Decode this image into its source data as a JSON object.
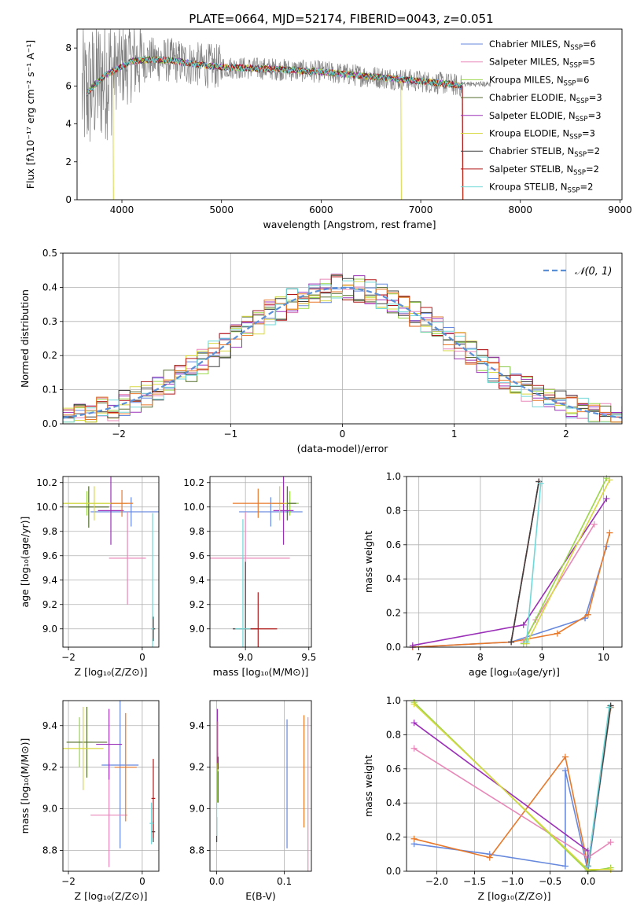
{
  "figure": {
    "title": "PLATE=0664, MJD=52174, FIBERID=0043, z=0.051"
  },
  "colors": {
    "Chabrier MILES": "#6688dd",
    "Salpeter MILES": "#e888b8",
    "Kroupa MILES": "#9ad64a",
    "Chabrier ELODIE": "#556b2f",
    "Salpeter ELODIE": "#9b30b8",
    "Kroupa ELODIE": "#d8d840",
    "Chabrier STELIB": "#404040",
    "Salpeter STELIB": "#b01818",
    "Kroupa STELIB": "#70d8d8",
    "orange": "#e8782a",
    "data": "#808080",
    "gauss": "#5b8fd6"
  },
  "chart_data": [
    {
      "id": "spectrum",
      "type": "line",
      "xlabel": "wavelength [Angstrom, rest frame]",
      "ylabel": "Flux [fλ10⁻¹⁷ erg cm⁻² s⁻¹ A⁻¹]",
      "xlim": [
        3550,
        9020
      ],
      "ylim": [
        0,
        9
      ],
      "xticks": [
        4000,
        5000,
        6000,
        7000,
        8000,
        9000
      ],
      "yticks": [
        0,
        2,
        4,
        6,
        8
      ],
      "legend_position": "upper-right",
      "legend": [
        {
          "label": "Chabrier MILES, N",
          "sub": "SSP",
          "tail": "=6",
          "color": "#6688dd"
        },
        {
          "label": "Salpeter MILES, N",
          "sub": "SSP",
          "tail": "=5",
          "color": "#e888b8"
        },
        {
          "label": "Kroupa MILES, N",
          "sub": "SSP",
          "tail": "=6",
          "color": "#9ad64a"
        },
        {
          "label": "Chabrier ELODIE, N",
          "sub": "SSP",
          "tail": "=3",
          "color": "#556b2f"
        },
        {
          "label": "Salpeter ELODIE, N",
          "sub": "SSP",
          "tail": "=3",
          "color": "#9b30b8"
        },
        {
          "label": "Kroupa ELODIE, N",
          "sub": "SSP",
          "tail": "=3",
          "color": "#d8d840"
        },
        {
          "label": "Chabrier STELIB, N",
          "sub": "SSP",
          "tail": "=2",
          "color": "#404040"
        },
        {
          "label": "Salpeter STELIB, N",
          "sub": "SSP",
          "tail": "=2",
          "color": "#b01818"
        },
        {
          "label": "Kroupa STELIB, N",
          "sub": "SSP",
          "tail": "=2",
          "color": "#70d8d8"
        }
      ],
      "continuum": [
        [
          3650,
          5.6
        ],
        [
          3750,
          6.2
        ],
        [
          3850,
          6.6
        ],
        [
          3950,
          6.9
        ],
        [
          4100,
          7.3
        ],
        [
          4300,
          7.4
        ],
        [
          4500,
          7.35
        ],
        [
          4800,
          7.1
        ],
        [
          5000,
          7.0
        ],
        [
          5200,
          6.95
        ],
        [
          5500,
          6.9
        ],
        [
          5800,
          6.8
        ],
        [
          6000,
          6.75
        ],
        [
          6300,
          6.6
        ],
        [
          6600,
          6.45
        ],
        [
          6900,
          6.3
        ],
        [
          7100,
          6.2
        ],
        [
          7300,
          6.1
        ],
        [
          7400,
          6.0
        ]
      ],
      "data_extent": [
        3600,
        7700
      ],
      "models_extent": [
        3650,
        7420
      ]
    },
    {
      "id": "residuals",
      "type": "histogram",
      "xlabel": "(data-model)/error",
      "ylabel": "Normed distribution",
      "xlim": [
        -2.5,
        2.5
      ],
      "ylim": [
        0,
        0.5
      ],
      "xticks": [
        -2,
        -1,
        0,
        1,
        2
      ],
      "yticks": [
        0.0,
        0.1,
        0.2,
        0.3,
        0.4,
        0.5
      ],
      "bin_width": 0.1,
      "legend": "𝒩(0, 1)",
      "legend_position": "upper-right",
      "gaussian": {
        "mean": 0,
        "sigma": 1
      }
    },
    {
      "id": "age_vs_Z",
      "type": "scatter",
      "xlabel": "Z [log₁₀(Z/Z⊙)]",
      "ylabel": "age  [log₁₀(age/yr)]",
      "xlim": [
        -2.15,
        0.45
      ],
      "ylim": [
        8.85,
        10.25
      ],
      "xticks": [
        -2,
        0
      ],
      "yticks": [
        9.0,
        9.2,
        9.4,
        9.6,
        9.8,
        10.0,
        10.2
      ],
      "points": [
        {
          "x": -0.3,
          "y": 9.96,
          "xerr": 1.1,
          "yerr": 0.12,
          "color": "#6688dd"
        },
        {
          "x": -0.4,
          "y": 9.58,
          "xerr": 0.5,
          "yerr": 0.38,
          "color": "#e888b8"
        },
        {
          "x": -1.5,
          "y": 10.03,
          "xerr": 0.7,
          "yerr": 0.1,
          "color": "#9ad64a"
        },
        {
          "x": -1.45,
          "y": 10.0,
          "xerr": 0.55,
          "yerr": 0.17,
          "color": "#556b2f"
        },
        {
          "x": -0.85,
          "y": 9.97,
          "xerr": 0.35,
          "yerr": 0.28,
          "color": "#9b30b8"
        },
        {
          "x": -1.3,
          "y": 10.03,
          "xerr": 0.9,
          "yerr": 0.14,
          "color": "#d8d840"
        },
        {
          "x": 0.3,
          "y": 9.0,
          "xerr": 0.05,
          "yerr": 0.1,
          "color": "#404040"
        },
        {
          "x": 0.3,
          "y": 9.0,
          "xerr": 0.02,
          "yerr": 0.08,
          "color": "#b01818"
        },
        {
          "x": 0.28,
          "y": 9.0,
          "xerr": 0.03,
          "yerr": 0.95,
          "color": "#70d8d8"
        },
        {
          "x": -0.55,
          "y": 10.03,
          "xerr": 0.3,
          "yerr": 0.11,
          "color": "#e8782a"
        }
      ]
    },
    {
      "id": "age_vs_mass",
      "type": "scatter",
      "xlabel": "mass [log₁₀(M/M⊙)]",
      "ylabel": "",
      "xlim": [
        8.72,
        9.52
      ],
      "ylim": [
        8.85,
        10.25
      ],
      "xticks": [
        9.0,
        9.5
      ],
      "yticks": [
        9.0,
        9.2,
        9.4,
        9.6,
        9.8,
        10.0,
        10.2
      ],
      "points": [
        {
          "x": 9.2,
          "y": 9.96,
          "xerr": 0.25,
          "yerr": 0.12,
          "color": "#6688dd"
        },
        {
          "x": 9.0,
          "y": 9.58,
          "xerr": 0.35,
          "yerr": 0.38,
          "color": "#e888b8"
        },
        {
          "x": 9.35,
          "y": 10.03,
          "xerr": 0.07,
          "yerr": 0.1,
          "color": "#9ad64a"
        },
        {
          "x": 9.33,
          "y": 10.03,
          "xerr": 0.07,
          "yerr": 0.14,
          "color": "#556b2f"
        },
        {
          "x": 9.3,
          "y": 9.97,
          "xerr": 0.08,
          "yerr": 0.28,
          "color": "#9b30b8"
        },
        {
          "x": 9.27,
          "y": 10.03,
          "xerr": 0.06,
          "yerr": 0.14,
          "color": "#d8d840"
        },
        {
          "x": 9.0,
          "y": 9.0,
          "xerr": 0.1,
          "yerr": 0.55,
          "color": "#404040"
        },
        {
          "x": 9.1,
          "y": 9.0,
          "xerr": 0.15,
          "yerr": 0.3,
          "color": "#b01818"
        },
        {
          "x": 8.98,
          "y": 9.0,
          "xerr": 0.06,
          "yerr": 0.9,
          "color": "#70d8d8"
        },
        {
          "x": 9.1,
          "y": 10.03,
          "xerr": 0.2,
          "yerr": 0.12,
          "color": "#e8782a"
        }
      ]
    },
    {
      "id": "weight_vs_age",
      "type": "line",
      "xlabel": "age  [log₁₀(age/yr)]",
      "ylabel": "mass weight",
      "xlim": [
        6.8,
        10.3
      ],
      "ylim": [
        0,
        1
      ],
      "xticks": [
        7,
        8,
        9,
        10
      ],
      "yticks": [
        0.0,
        0.2,
        0.4,
        0.6,
        0.8,
        1.0
      ],
      "series": [
        {
          "color": "#6688dd",
          "points": [
            [
              6.9,
              0.0
            ],
            [
              8.5,
              0.03
            ],
            [
              9.7,
              0.17
            ],
            [
              10.05,
              0.59
            ],
            [
              9.7,
              0.17
            ]
          ]
        },
        {
          "color": "#e8782a",
          "points": [
            [
              6.9,
              0.0
            ],
            [
              8.5,
              0.03
            ],
            [
              9.25,
              0.08
            ],
            [
              9.75,
              0.19
            ],
            [
              10.1,
              0.67
            ]
          ]
        },
        {
          "color": "#e888b8",
          "points": [
            [
              8.7,
              0.03
            ],
            [
              8.9,
              0.16
            ],
            [
              9.85,
              0.72
            ]
          ]
        },
        {
          "color": "#9b30b8",
          "points": [
            [
              6.9,
              0.01
            ],
            [
              8.7,
              0.13
            ],
            [
              10.05,
              0.87
            ]
          ]
        },
        {
          "color": "#9ad64a",
          "points": [
            [
              8.7,
              0.02
            ],
            [
              10.05,
              0.99
            ]
          ]
        },
        {
          "color": "#d8d840",
          "points": [
            [
              8.75,
              0.02
            ],
            [
              10.1,
              0.98
            ]
          ]
        },
        {
          "color": "#b01818",
          "points": [
            [
              8.5,
              0.03
            ],
            [
              8.95,
              0.97
            ]
          ]
        },
        {
          "color": "#404040",
          "points": [
            [
              8.5,
              0.03
            ],
            [
              8.95,
              0.97
            ]
          ]
        },
        {
          "color": "#70d8d8",
          "points": [
            [
              8.75,
              0.03
            ],
            [
              8.98,
              0.96
            ]
          ]
        }
      ]
    },
    {
      "id": "mass_vs_Z",
      "type": "scatter",
      "xlabel": "Z [log₁₀(Z/Z⊙)]",
      "ylabel": "mass [log₁₀(M/M⊙)]",
      "xlim": [
        -2.15,
        0.45
      ],
      "ylim": [
        8.7,
        9.52
      ],
      "xticks": [
        -2,
        0
      ],
      "yticks": [
        8.8,
        9.0,
        9.2,
        9.4
      ],
      "points": [
        {
          "x": -0.6,
          "y": 9.21,
          "xerr": 0.5,
          "yerr": 0.4,
          "color": "#6688dd"
        },
        {
          "x": -0.9,
          "y": 8.97,
          "xerr": 0.5,
          "yerr": 0.25,
          "color": "#e888b8"
        },
        {
          "x": -1.7,
          "y": 9.32,
          "xerr": 0.35,
          "yerr": 0.12,
          "color": "#9ad64a"
        },
        {
          "x": -1.5,
          "y": 9.32,
          "xerr": 0.55,
          "yerr": 0.17,
          "color": "#556b2f"
        },
        {
          "x": -0.9,
          "y": 9.31,
          "xerr": 0.35,
          "yerr": 0.17,
          "color": "#9b30b8"
        },
        {
          "x": -1.6,
          "y": 9.29,
          "xerr": 0.55,
          "yerr": 0.2,
          "color": "#d8d840"
        },
        {
          "x": 0.3,
          "y": 8.89,
          "xerr": 0.05,
          "yerr": 0.05,
          "color": "#404040"
        },
        {
          "x": 0.3,
          "y": 9.05,
          "xerr": 0.05,
          "yerr": 0.19,
          "color": "#b01818"
        },
        {
          "x": 0.25,
          "y": 8.93,
          "xerr": 0.05,
          "yerr": 0.1,
          "color": "#70d8d8"
        },
        {
          "x": -0.45,
          "y": 9.2,
          "xerr": 0.3,
          "yerr": 0.26,
          "color": "#e8782a"
        }
      ]
    },
    {
      "id": "mass_vs_ebv",
      "type": "scatter",
      "xlabel": "E(B-V)",
      "ylabel": "",
      "xlim": [
        -0.01,
        0.14
      ],
      "ylim": [
        8.7,
        9.52
      ],
      "xticks": [
        0.0,
        0.1
      ],
      "yticks": [
        8.8,
        9.0,
        9.2,
        9.4
      ],
      "points": [
        {
          "x": 0.104,
          "y": 9.12,
          "yerr": 0.31,
          "color": "#6688dd"
        },
        {
          "x": 0.135,
          "y": 9.07,
          "yerr": 0.37,
          "color": "#e888b8"
        },
        {
          "x": 0.001,
          "y": 9.25,
          "yerr": 0.22,
          "color": "#9ad64a"
        },
        {
          "x": 0.002,
          "y": 9.15,
          "yerr": 0.12,
          "color": "#556b2f"
        },
        {
          "x": 0.001,
          "y": 9.35,
          "yerr": 0.13,
          "color": "#9b30b8"
        },
        {
          "x": 0.002,
          "y": 9.3,
          "yerr": 0.12,
          "color": "#d8d840"
        },
        {
          "x": 0.0,
          "y": 8.9,
          "yerr": 0.06,
          "color": "#404040"
        },
        {
          "x": 0.002,
          "y": 9.22,
          "yerr": 0.03,
          "color": "#b01818"
        },
        {
          "x": 0.0,
          "y": 8.95,
          "yerr": 0.08,
          "color": "#70d8d8"
        },
        {
          "x": 0.129,
          "y": 9.18,
          "yerr": 0.27,
          "color": "#e8782a"
        }
      ]
    },
    {
      "id": "weight_vs_Z",
      "type": "line",
      "xlabel": "Z [log₁₀(Z/Z⊙)]",
      "ylabel": "mass weight",
      "xlim": [
        -2.4,
        0.45
      ],
      "ylim": [
        0,
        1
      ],
      "xticks": [
        -2.0,
        -1.5,
        -1.0,
        -0.5,
        0.0
      ],
      "yticks": [
        0.0,
        0.2,
        0.4,
        0.6,
        0.8,
        1.0
      ],
      "series": [
        {
          "color": "#6688dd",
          "points": [
            [
              -2.3,
              0.16
            ],
            [
              -1.3,
              0.1
            ],
            [
              -0.3,
              0.03
            ],
            [
              -0.3,
              0.59
            ],
            [
              0.0,
              0.0
            ],
            [
              0.3,
              0.96
            ]
          ]
        },
        {
          "color": "#e8782a",
          "points": [
            [
              -2.3,
              0.19
            ],
            [
              -1.3,
              0.08
            ],
            [
              -0.3,
              0.67
            ],
            [
              0.0,
              0.03
            ],
            [
              0.3,
              0.96
            ]
          ]
        },
        {
          "color": "#e888b8",
          "points": [
            [
              -2.3,
              0.72
            ],
            [
              0.0,
              0.08
            ],
            [
              0.3,
              0.17
            ]
          ]
        },
        {
          "color": "#9b30b8",
          "points": [
            [
              -2.3,
              0.87
            ],
            [
              0.0,
              0.12
            ],
            [
              0.0,
              0.01
            ]
          ]
        },
        {
          "color": "#9ad64a",
          "points": [
            [
              -2.3,
              0.99
            ],
            [
              0.0,
              0.0
            ],
            [
              0.3,
              0.02
            ]
          ]
        },
        {
          "color": "#d8d840",
          "points": [
            [
              -2.3,
              0.98
            ],
            [
              0.0,
              0.01
            ],
            [
              0.3,
              0.01
            ]
          ]
        },
        {
          "color": "#b01818",
          "points": [
            [
              0.0,
              0.03
            ],
            [
              0.3,
              0.97
            ]
          ]
        },
        {
          "color": "#404040",
          "points": [
            [
              0.0,
              0.03
            ],
            [
              0.3,
              0.97
            ]
          ]
        },
        {
          "color": "#70d8d8",
          "points": [
            [
              0.0,
              0.03
            ],
            [
              0.28,
              0.96
            ]
          ]
        }
      ]
    }
  ]
}
